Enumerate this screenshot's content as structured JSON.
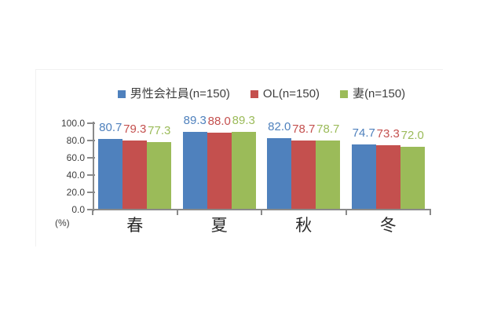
{
  "chart_data": {
    "type": "bar",
    "title": "",
    "categories": [
      "春",
      "夏",
      "秋",
      "冬"
    ],
    "series": [
      {
        "name": "男性会社員(n=150)",
        "color": "#4F81BD",
        "values": [
          80.7,
          89.3,
          82.0,
          74.7
        ]
      },
      {
        "name": "OL(n=150)",
        "color": "#C4504E",
        "values": [
          79.3,
          88.0,
          78.7,
          73.3
        ]
      },
      {
        "name": "妻(n=150)",
        "color": "#9BBB59",
        "values": [
          77.3,
          89.3,
          78.7,
          72.0
        ]
      }
    ],
    "ylim": [
      0,
      100
    ],
    "yticks": [
      {
        "value": 100,
        "label": "100.0"
      },
      {
        "value": 80,
        "label": "80.0"
      },
      {
        "value": 60,
        "label": "60.0"
      },
      {
        "value": 40,
        "label": "40.0"
      },
      {
        "value": 20,
        "label": "20.0"
      },
      {
        "value": 0,
        "label": "0.0"
      }
    ],
    "unit_label": "(%)",
    "value_label_decimals": 1,
    "legend_position": "top",
    "grid": false,
    "data_labels": "outside-end",
    "axis_color": "#8a8a8a",
    "background": "#ffffff"
  }
}
